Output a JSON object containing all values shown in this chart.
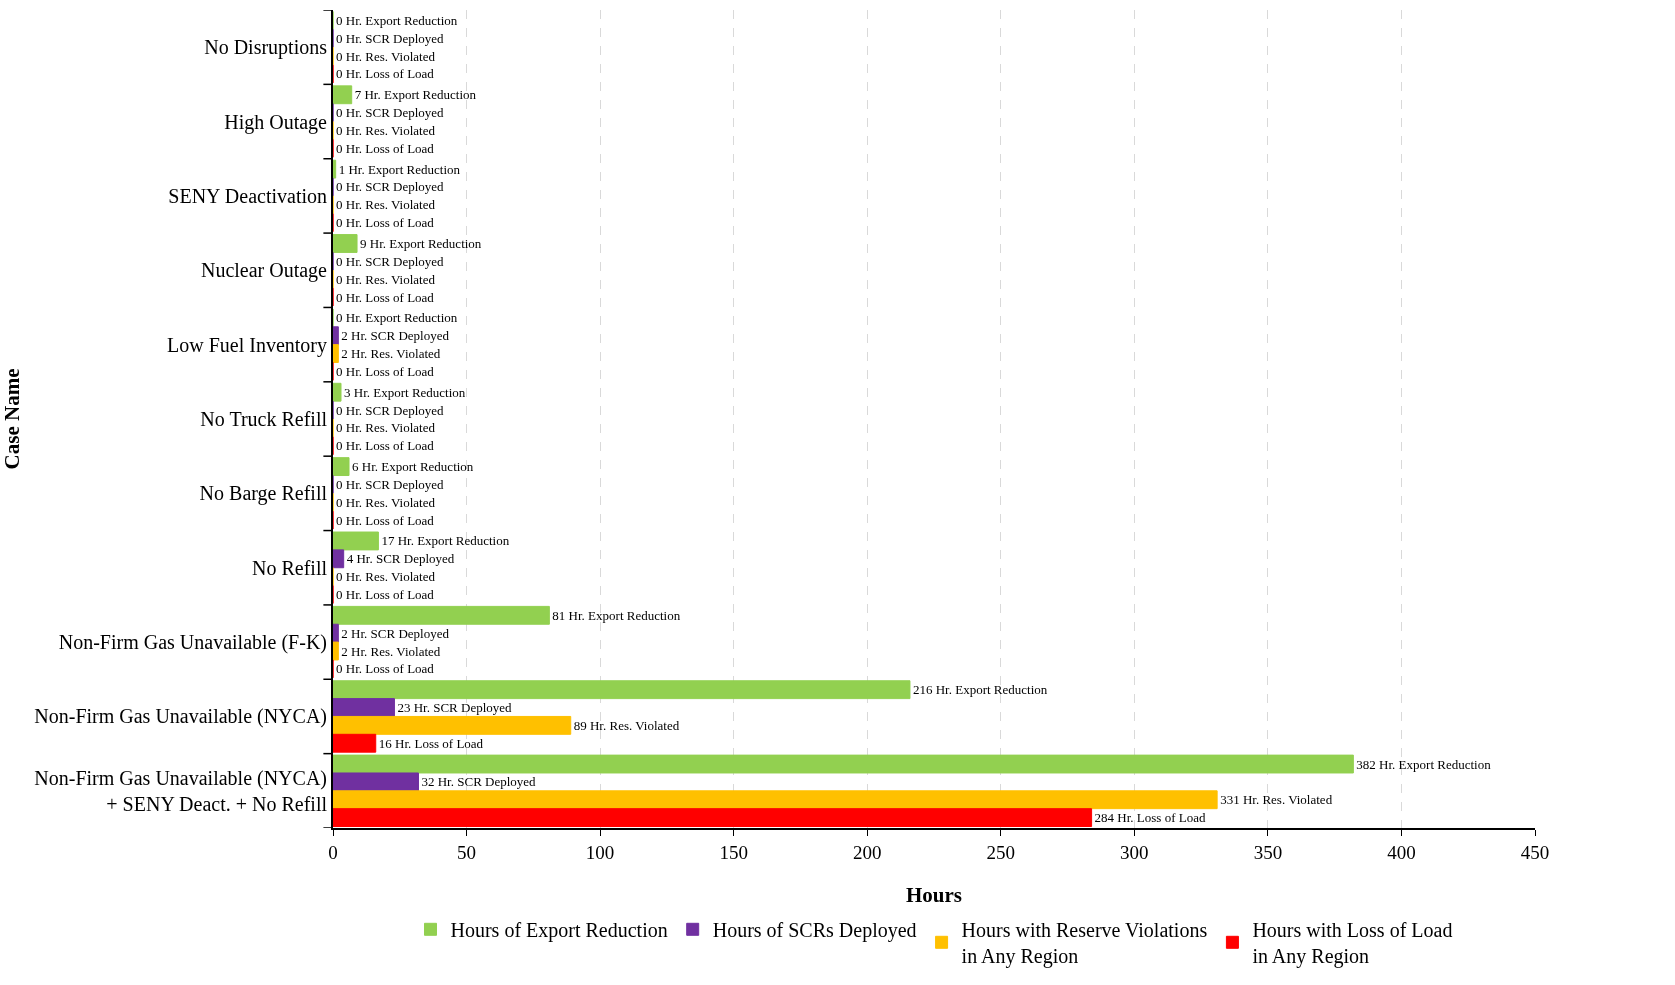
{
  "chart_data": {
    "type": "bar",
    "orientation": "horizontal",
    "xlabel": "Hours",
    "ylabel": "Case Name",
    "categories": [
      "No Disruptions",
      "High Outage",
      "SENY Deactivation",
      "Nuclear Outage",
      "Low Fuel Inventory",
      "No Truck Refill",
      "No Barge Refill",
      "No Refill",
      "Non-Firm Gas Unavailable (F-K)",
      "Non-Firm Gas Unavailable (NYCA)",
      "Non-Firm Gas Unavailable (NYCA)\n+ SENY Deact. + No Refill"
    ],
    "series": [
      {
        "name": "Hours of Export Reduction",
        "color": "#92d050",
        "values": [
          0,
          7,
          1,
          9,
          0,
          3,
          6,
          17,
          81,
          216,
          382
        ],
        "value_labels": [
          "0 Hr. Export Reduction",
          "7 Hr. Export Reduction",
          "1 Hr. Export Reduction",
          "9 Hr. Export Reduction",
          "0 Hr. Export Reduction",
          "3 Hr. Export Reduction",
          "6 Hr. Export Reduction",
          "17 Hr. Export Reduction",
          "81 Hr. Export Reduction",
          "216 Hr. Export Reduction",
          "382 Hr. Export Reduction"
        ]
      },
      {
        "name": "Hours of SCRs Deployed",
        "color": "#7030a0",
        "values": [
          0,
          0,
          0,
          0,
          2,
          0,
          0,
          4,
          2,
          23,
          32
        ],
        "value_labels": [
          "0 Hr. SCR Deployed",
          "0 Hr. SCR Deployed",
          "0 Hr. SCR Deployed",
          "0 Hr. SCR Deployed",
          "2 Hr. SCR Deployed",
          "0 Hr. SCR Deployed",
          "0 Hr. SCR Deployed",
          "4 Hr. SCR Deployed",
          "2 Hr. SCR Deployed",
          "23 Hr. SCR Deployed",
          "32 Hr. SCR Deployed"
        ]
      },
      {
        "name": "Hours with Reserve Violations\nin Any Region",
        "color": "#ffc000",
        "values": [
          0,
          0,
          0,
          0,
          2,
          0,
          0,
          0,
          2,
          89,
          331
        ],
        "value_labels": [
          "0 Hr. Res. Violated",
          "0 Hr. Res. Violated",
          "0 Hr. Res. Violated",
          "0 Hr. Res. Violated",
          "2 Hr. Res. Violated",
          "0 Hr. Res. Violated",
          "0 Hr. Res. Violated",
          "0 Hr. Res. Violated",
          "2 Hr. Res. Violated",
          "89 Hr. Res. Violated",
          "331 Hr. Res. Violated"
        ]
      },
      {
        "name": "Hours with Loss of Load\nin Any Region",
        "color": "#ff0000",
        "values": [
          0,
          0,
          0,
          0,
          0,
          0,
          0,
          0,
          0,
          16,
          284
        ],
        "value_labels": [
          "0 Hr. Loss of Load",
          "0 Hr. Loss of Load",
          "0 Hr. Loss of Load",
          "0 Hr. Loss of Load",
          "0 Hr. Loss of Load",
          "0 Hr. Loss of Load",
          "0 Hr. Loss of Load",
          "0 Hr. Loss of Load",
          "0 Hr. Loss of Load",
          "16 Hr. Loss of Load",
          "284 Hr. Loss of Load"
        ]
      }
    ],
    "xlim": [
      0,
      450
    ],
    "xticks": [
      0,
      50,
      100,
      150,
      200,
      250,
      300,
      350,
      400,
      450
    ],
    "grid": "x",
    "legend": "bottom"
  }
}
